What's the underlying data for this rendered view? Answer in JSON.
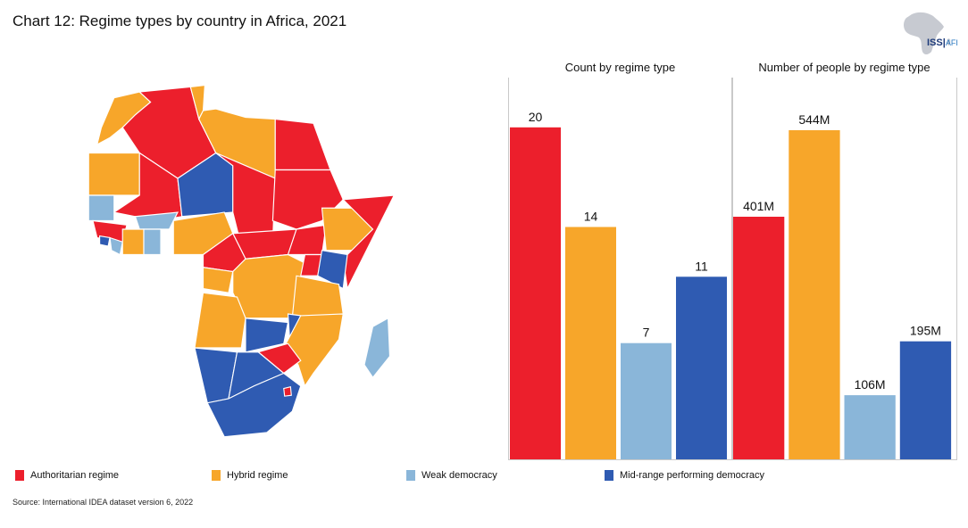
{
  "title": "Chart 12: Regime types by country in Africa, 2021",
  "logo": {
    "text_main": "ISS",
    "text_sub": "AFI"
  },
  "colors": {
    "authoritarian": "#EC1F2C",
    "hybrid": "#F7A62A",
    "weak": "#8AB6D9",
    "midrange": "#2F5BB2",
    "panel_border": "#C9C9C9"
  },
  "legend": [
    {
      "label": "Authoritarian regime",
      "color": "#EC1F2C"
    },
    {
      "label": "Hybrid regime",
      "color": "#F7A62A"
    },
    {
      "label": "Weak democracy",
      "color": "#8AB6D9"
    },
    {
      "label": "Mid-range performing democracy",
      "color": "#2F5BB2"
    }
  ],
  "source": "Source: International IDEA dataset version 6, 2022",
  "chart_data": [
    {
      "type": "bar",
      "title": "Count by regime type",
      "categories": [
        "Authoritarian regime",
        "Hybrid regime",
        "Weak democracy",
        "Mid-range performing democracy"
      ],
      "values": [
        20,
        14,
        7,
        11
      ],
      "labels": [
        "20",
        "14",
        "7",
        "11"
      ],
      "ylim": [
        0,
        23
      ]
    },
    {
      "type": "bar",
      "title": "Number of people by regime type",
      "categories": [
        "Authoritarian regime",
        "Hybrid regime",
        "Weak democracy",
        "Mid-range performing democracy"
      ],
      "values": [
        401,
        544,
        106,
        195
      ],
      "labels": [
        "401M",
        "544M",
        "106M",
        "195M"
      ],
      "unit": "million people",
      "ylim": [
        0,
        631
      ]
    }
  ]
}
